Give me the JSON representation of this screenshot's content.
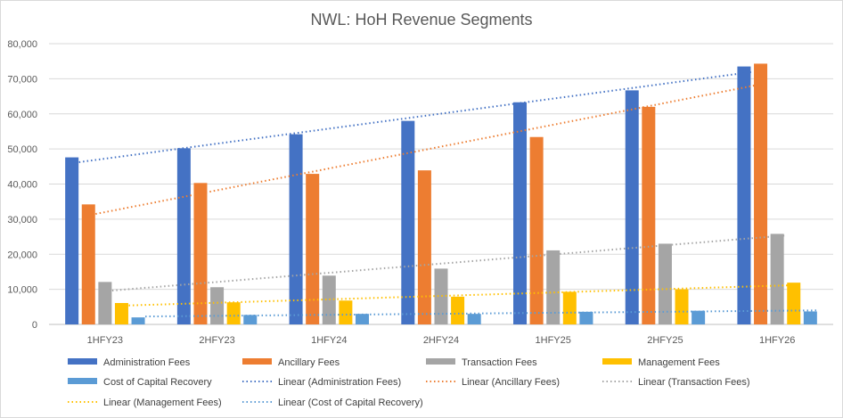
{
  "chart_data": {
    "type": "bar",
    "title": "NWL: HoH Revenue Segments",
    "xlabel": "",
    "ylabel": "",
    "ylim": [
      0,
      80000
    ],
    "yticks": [
      0,
      10000,
      20000,
      30000,
      40000,
      50000,
      60000,
      70000,
      80000
    ],
    "ytick_labels": [
      "0",
      "10,000",
      "20,000",
      "30,000",
      "40,000",
      "50,000",
      "60,000",
      "70,000",
      "80,000"
    ],
    "grid": true,
    "legend_position": "bottom",
    "categories": [
      "1HFY23",
      "2HFY23",
      "1HFY24",
      "2HFY24",
      "1HFY25",
      "2HFY25",
      "1HFY26"
    ],
    "series": [
      {
        "name": "Administration Fees",
        "color": "#4472c4",
        "values": [
          47600,
          50200,
          54200,
          58000,
          63300,
          66700,
          73500
        ]
      },
      {
        "name": "Ancillary Fees",
        "color": "#ed7d31",
        "values": [
          34200,
          40300,
          42900,
          43900,
          53400,
          62000,
          74300
        ]
      },
      {
        "name": "Transaction Fees",
        "color": "#a5a5a5",
        "values": [
          12100,
          10600,
          13900,
          15900,
          21100,
          23000,
          25800
        ]
      },
      {
        "name": "Management Fees",
        "color": "#ffc000",
        "values": [
          6100,
          6300,
          6800,
          7900,
          9300,
          10000,
          11900
        ]
      },
      {
        "name": "Cost of Capital Recovery",
        "color": "#5b9bd5",
        "values": [
          2000,
          2700,
          3000,
          3000,
          3600,
          3900,
          3700
        ]
      }
    ],
    "trendlines": [
      {
        "name": "Linear (Administration Fees)",
        "color": "#4472c4",
        "type": "linear",
        "series": "Administration Fees"
      },
      {
        "name": "Linear (Ancillary Fees)",
        "color": "#ed7d31",
        "type": "linear",
        "series": "Ancillary Fees"
      },
      {
        "name": "Linear (Transaction Fees)",
        "color": "#a5a5a5",
        "type": "linear",
        "series": "Transaction Fees"
      },
      {
        "name": "Linear (Management Fees)",
        "color": "#ffc000",
        "type": "linear",
        "series": "Management Fees"
      },
      {
        "name": "Linear (Cost of Capital Recovery)",
        "color": "#5b9bd5",
        "type": "linear",
        "series": "Cost of Capital Recovery"
      }
    ]
  }
}
